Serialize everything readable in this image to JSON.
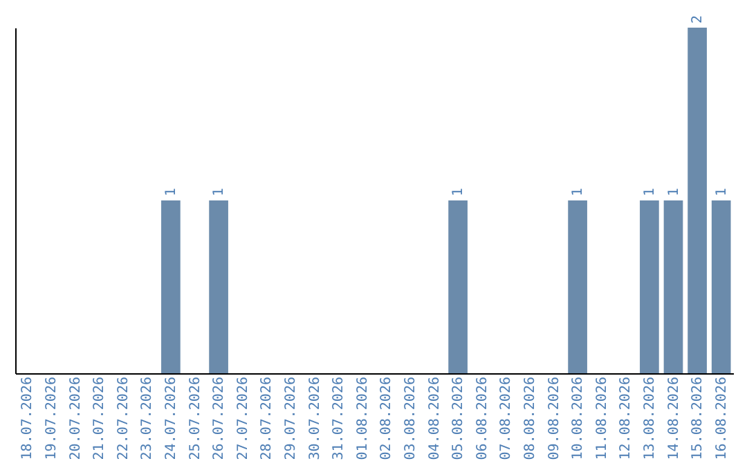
{
  "chart_data": {
    "type": "bar",
    "categories": [
      "18.07.2026",
      "19.07.2026",
      "20.07.2026",
      "21.07.2026",
      "22.07.2026",
      "23.07.2026",
      "24.07.2026",
      "25.07.2026",
      "26.07.2026",
      "27.07.2026",
      "28.07.2026",
      "29.07.2026",
      "30.07.2026",
      "31.07.2026",
      "01.08.2026",
      "02.08.2026",
      "03.08.2026",
      "04.08.2026",
      "05.08.2026",
      "06.08.2026",
      "07.08.2026",
      "08.08.2026",
      "09.08.2026",
      "10.08.2026",
      "11.08.2026",
      "12.08.2026",
      "13.08.2026",
      "14.08.2026",
      "15.08.2026",
      "16.08.2026"
    ],
    "values": [
      0,
      0,
      0,
      0,
      0,
      0,
      1,
      0,
      1,
      0,
      0,
      0,
      0,
      0,
      0,
      0,
      0,
      0,
      1,
      0,
      0,
      0,
      0,
      1,
      0,
      0,
      1,
      1,
      2,
      1
    ],
    "value_labels": [
      null,
      null,
      null,
      null,
      null,
      null,
      "1",
      null,
      "1",
      null,
      null,
      null,
      null,
      null,
      null,
      null,
      null,
      null,
      "1",
      null,
      null,
      null,
      null,
      "1",
      null,
      null,
      "1",
      "1",
      "2",
      "1"
    ],
    "color": "#6b8bab",
    "tick_labels": "x",
    "grid": false
  }
}
